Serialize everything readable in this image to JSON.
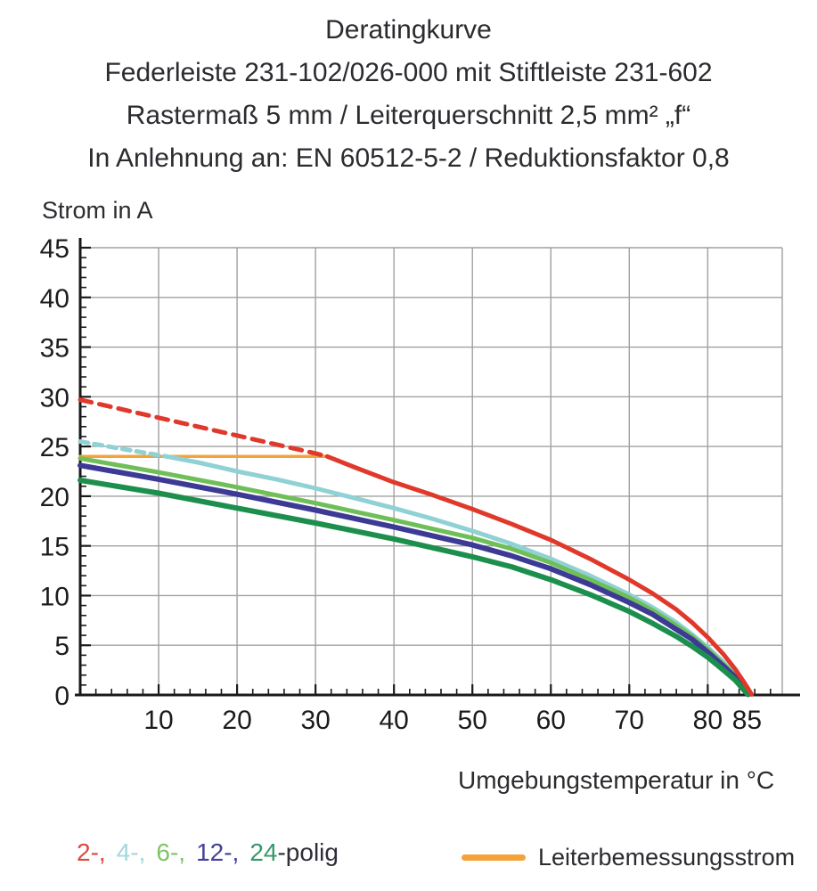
{
  "title": {
    "line1": "Deratingkurve",
    "line2": "Federleiste 231-102/026-000 mit Stiftleiste 231-602",
    "line3": "Rastermaß 5 mm / Leiterquerschnitt 2,5 mm² „f“",
    "line4": "In Anlehnung an: EN 60512-5-2 / Reduktionsfaktor 0,8"
  },
  "axis": {
    "ylabel": "Strom in A",
    "xlabel": "Umgebungstemperatur in °C"
  },
  "legend": {
    "pole_items": [
      {
        "text": "2-,",
        "color": "#dd4a3c"
      },
      {
        "text": "4-,",
        "color": "#a5d6da"
      },
      {
        "text": "6-,",
        "color": "#7dc465"
      },
      {
        "text": "12-,",
        "color": "#44419b"
      },
      {
        "text": "24",
        "color": "#34996b"
      }
    ],
    "suffix": "-polig",
    "suffix_color": "#2e2e38",
    "rated_label": "Leiterbemessungsstrom",
    "rated_color": "#f3a339"
  },
  "chart_data": {
    "type": "line",
    "title": "Deratingkurve",
    "xlabel": "Umgebungstemperatur in °C",
    "ylabel": "Strom in A",
    "xlim": [
      0,
      89.5
    ],
    "ylim": [
      0,
      45
    ],
    "x_major_ticks": [
      10,
      20,
      30,
      40,
      50,
      60,
      70,
      80,
      85
    ],
    "x_gridlines": [
      10,
      20,
      30,
      40,
      50,
      60,
      70,
      80
    ],
    "y_major_ticks": [
      0,
      5,
      10,
      15,
      20,
      25,
      30,
      35,
      40,
      45
    ],
    "x_minor_step": 2,
    "y_minor_step": 1,
    "grid_color": "#a0a0a0",
    "axis_color": "#1a1a1a",
    "grid": true,
    "legend_position": "bottom",
    "series": [
      {
        "name": "Leiterbemessungsstrom",
        "color": "#f3a339",
        "width": 3.5,
        "segments": [
          {
            "dash": null,
            "points": [
              [
                0,
                24
              ],
              [
                31.3,
                24
              ]
            ]
          }
        ]
      },
      {
        "name": "4-polig",
        "color": "#8fd1d5",
        "width": 5,
        "segments": [
          {
            "dash": "9 7",
            "points": [
              [
                0,
                25.5
              ],
              [
                5,
                24.8
              ],
              [
                11,
                24
              ]
            ]
          },
          {
            "dash": null,
            "points": [
              [
                11,
                24
              ],
              [
                15,
                23.4
              ],
              [
                20,
                22.5
              ],
              [
                25,
                21.7
              ],
              [
                30,
                20.8
              ],
              [
                35,
                19.8
              ],
              [
                40,
                18.8
              ],
              [
                45,
                17.7
              ],
              [
                50,
                16.5
              ],
              [
                55,
                15.2
              ],
              [
                60,
                13.7
              ],
              [
                65,
                12.0
              ],
              [
                70,
                10.1
              ],
              [
                73,
                8.8
              ],
              [
                76,
                7.3
              ],
              [
                78,
                6.1
              ],
              [
                80,
                4.8
              ],
              [
                82,
                3.3
              ],
              [
                83.5,
                2.0
              ],
              [
                84.6,
                0.8
              ],
              [
                85.3,
                0.05
              ]
            ]
          }
        ]
      },
      {
        "name": "6-polig",
        "color": "#6fbf58",
        "width": 5,
        "segments": [
          {
            "dash": null,
            "points": [
              [
                0,
                23.8
              ],
              [
                10,
                22.4
              ],
              [
                20,
                20.9
              ],
              [
                30,
                19.3
              ],
              [
                40,
                17.6
              ],
              [
                50,
                15.8
              ],
              [
                55,
                14.7
              ],
              [
                60,
                13.3
              ],
              [
                65,
                11.6
              ],
              [
                70,
                9.8
              ],
              [
                73,
                8.5
              ],
              [
                76,
                7.0
              ],
              [
                78,
                5.9
              ],
              [
                80,
                4.6
              ],
              [
                82,
                3.1
              ],
              [
                83.5,
                1.9
              ],
              [
                84.6,
                0.7
              ],
              [
                85.2,
                0.05
              ]
            ]
          }
        ]
      },
      {
        "name": "12-polig",
        "color": "#3d3a96",
        "width": 6,
        "segments": [
          {
            "dash": null,
            "points": [
              [
                0,
                23.1
              ],
              [
                10,
                21.7
              ],
              [
                20,
                20.2
              ],
              [
                30,
                18.6
              ],
              [
                40,
                16.9
              ],
              [
                50,
                15.1
              ],
              [
                55,
                14.0
              ],
              [
                60,
                12.7
              ],
              [
                65,
                11.1
              ],
              [
                70,
                9.3
              ],
              [
                73,
                8.1
              ],
              [
                76,
                6.6
              ],
              [
                78,
                5.6
              ],
              [
                80,
                4.3
              ],
              [
                82,
                2.9
              ],
              [
                83.5,
                1.8
              ],
              [
                84.6,
                0.6
              ],
              [
                85.2,
                0.05
              ]
            ]
          }
        ]
      },
      {
        "name": "24-polig",
        "color": "#1d8f4d",
        "width": 6,
        "segments": [
          {
            "dash": null,
            "points": [
              [
                0,
                21.6
              ],
              [
                10,
                20.3
              ],
              [
                20,
                18.8
              ],
              [
                30,
                17.3
              ],
              [
                40,
                15.7
              ],
              [
                50,
                13.9
              ],
              [
                55,
                12.9
              ],
              [
                60,
                11.6
              ],
              [
                65,
                10.1
              ],
              [
                70,
                8.4
              ],
              [
                73,
                7.2
              ],
              [
                76,
                5.9
              ],
              [
                78,
                4.9
              ],
              [
                80,
                3.8
              ],
              [
                82,
                2.5
              ],
              [
                83.5,
                1.5
              ],
              [
                84.6,
                0.5
              ],
              [
                85.1,
                0.05
              ]
            ]
          }
        ]
      },
      {
        "name": "2-polig",
        "color": "#e0392b",
        "width": 5,
        "segments": [
          {
            "dash": "13 9",
            "points": [
              [
                0,
                29.7
              ],
              [
                10,
                27.9
              ],
              [
                20,
                26.1
              ],
              [
                30,
                24.3
              ],
              [
                31.5,
                24
              ]
            ]
          },
          {
            "dash": null,
            "points": [
              [
                31.5,
                24
              ],
              [
                35,
                22.9
              ],
              [
                40,
                21.4
              ],
              [
                45,
                20.1
              ],
              [
                50,
                18.7
              ],
              [
                55,
                17.2
              ],
              [
                60,
                15.6
              ],
              [
                65,
                13.7
              ],
              [
                70,
                11.6
              ],
              [
                73,
                10.2
              ],
              [
                76,
                8.6
              ],
              [
                78,
                7.3
              ],
              [
                80,
                5.8
              ],
              [
                82,
                4.1
              ],
              [
                83.5,
                2.6
              ],
              [
                84.7,
                1.2
              ],
              [
                85.6,
                0.05
              ]
            ]
          }
        ]
      }
    ]
  }
}
